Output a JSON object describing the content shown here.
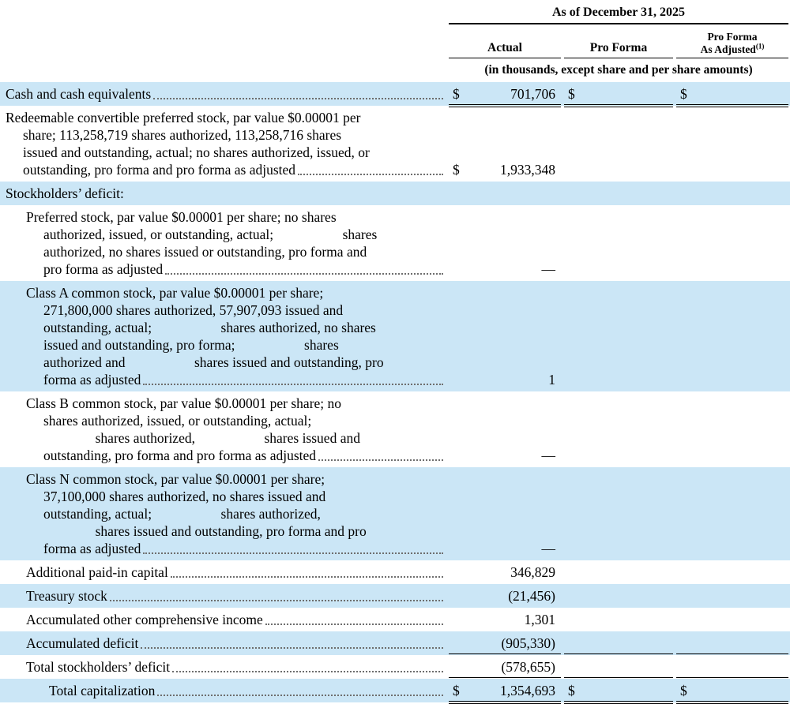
{
  "colors": {
    "row_highlight": "#cbe6f6"
  },
  "header": {
    "group": "As of December 31, 2025",
    "columns": {
      "actual": "Actual",
      "pro_forma": "Pro Forma",
      "adjusted_line1": "Pro Forma",
      "adjusted_line2": "As Adjusted",
      "adjusted_footnote": "(1)"
    },
    "units_note": "(in thousands, except share and per share amounts)"
  },
  "rows": [
    {
      "lines": [
        "Cash and cash equivalents"
      ],
      "actual": {
        "currency": "$",
        "value": "701,706"
      },
      "pro_forma": {
        "currency": "$",
        "value": ""
      },
      "adjusted": {
        "currency": "$",
        "value": ""
      }
    },
    {
      "lines": [
        "Redeemable convertible preferred stock, par value $0.00001 per",
        "share; 113,258,719 shares authorized, 113,258,716 shares",
        "issued and outstanding, actual; no shares authorized, issued, or",
        "outstanding, pro forma and pro forma as adjusted"
      ],
      "actual": {
        "currency": "$",
        "value": "1,933,348"
      }
    },
    {
      "lines": [
        "Stockholders’ deficit:"
      ]
    },
    {
      "lines": [
        "Preferred stock, par value $0.00001 per share; no shares",
        "authorized, issued, or outstanding, actual;                    shares",
        "authorized, no shares issued or outstanding, pro forma and",
        "pro forma as adjusted"
      ],
      "actual": {
        "value": "—"
      }
    },
    {
      "lines": [
        "Class A common stock, par value $0.00001 per share;",
        "271,800,000 shares authorized, 57,907,093 issued and",
        "outstanding, actual;                    shares authorized, no shares",
        "issued and outstanding, pro forma;                    shares",
        "authorized and                    shares issued and outstanding, pro",
        "forma as adjusted"
      ],
      "actual": {
        "value": "1"
      }
    },
    {
      "lines": [
        "Class B common stock, par value $0.00001 per share; no",
        "shares authorized, issued, or outstanding, actual;",
        "               shares authorized,                    shares issued and",
        "outstanding, pro forma and pro forma as adjusted"
      ],
      "actual": {
        "value": "—"
      }
    },
    {
      "lines": [
        "Class N common stock, par value $0.00001 per share;",
        "37,100,000 shares authorized, no shares issued and",
        "outstanding, actual;                    shares authorized,",
        "               shares issued and outstanding, pro forma and pro",
        "forma as adjusted"
      ],
      "actual": {
        "value": "—"
      }
    },
    {
      "lines": [
        "Additional paid-in capital"
      ],
      "actual": {
        "value": "346,829"
      }
    },
    {
      "lines": [
        "Treasury stock"
      ],
      "actual": {
        "value": "(21,456)"
      }
    },
    {
      "lines": [
        "Accumulated other comprehensive income"
      ],
      "actual": {
        "value": "1,301"
      }
    },
    {
      "lines": [
        "Accumulated deficit"
      ],
      "actual": {
        "value": "(905,330)"
      }
    },
    {
      "lines": [
        "Total stockholders’ deficit"
      ],
      "actual": {
        "value": "(578,655)"
      }
    },
    {
      "lines": [
        "Total capitalization"
      ],
      "actual": {
        "currency": "$",
        "value": "1,354,693"
      },
      "pro_forma": {
        "currency": "$",
        "value": ""
      },
      "adjusted": {
        "currency": "$",
        "value": ""
      }
    }
  ]
}
